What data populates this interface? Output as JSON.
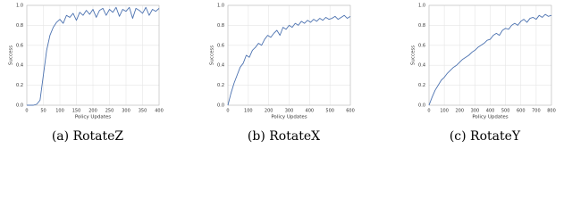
{
  "chart_data": [
    {
      "type": "line",
      "caption": "(a) RotateZ",
      "xlabel": "Policy Updates",
      "ylabel": "Success",
      "color": "#4c72b0",
      "grid": true,
      "x": [
        0,
        10,
        20,
        30,
        40,
        50,
        60,
        70,
        80,
        90,
        100,
        110,
        120,
        130,
        140,
        150,
        160,
        170,
        180,
        190,
        200,
        210,
        220,
        230,
        240,
        250,
        260,
        270,
        280,
        290,
        300,
        310,
        320,
        330,
        340,
        350,
        360,
        370,
        380,
        390,
        400
      ],
      "values": [
        0.0,
        0.0,
        0.0,
        0.01,
        0.05,
        0.3,
        0.55,
        0.7,
        0.78,
        0.83,
        0.86,
        0.82,
        0.9,
        0.88,
        0.92,
        0.85,
        0.93,
        0.9,
        0.95,
        0.91,
        0.96,
        0.88,
        0.95,
        0.97,
        0.9,
        0.96,
        0.93,
        0.98,
        0.89,
        0.96,
        0.94,
        0.98,
        0.87,
        0.97,
        0.95,
        0.92,
        0.98,
        0.9,
        0.96,
        0.94,
        0.97
      ],
      "xlim": [
        0,
        400
      ],
      "xticks": [
        0,
        50,
        100,
        150,
        200,
        250,
        300,
        350,
        400
      ],
      "ylim": [
        0,
        1
      ],
      "yticks": [
        {
          "value": 0,
          "label": "0.0"
        },
        0.2,
        0.4,
        0.6,
        0.8,
        {
          "value": 1,
          "label": "1.0"
        }
      ]
    },
    {
      "type": "line",
      "caption": "(b) RotateX",
      "xlabel": "Policy Updates",
      "ylabel": "Success",
      "color": "#4c72b0",
      "grid": true,
      "x": [
        0,
        15,
        30,
        45,
        60,
        75,
        90,
        105,
        120,
        135,
        150,
        165,
        180,
        195,
        210,
        225,
        240,
        255,
        270,
        285,
        300,
        315,
        330,
        345,
        360,
        375,
        390,
        405,
        420,
        435,
        450,
        465,
        480,
        495,
        510,
        525,
        540,
        555,
        570,
        585,
        600
      ],
      "values": [
        0.0,
        0.12,
        0.22,
        0.3,
        0.38,
        0.42,
        0.5,
        0.48,
        0.55,
        0.58,
        0.62,
        0.6,
        0.66,
        0.7,
        0.68,
        0.72,
        0.75,
        0.7,
        0.78,
        0.76,
        0.8,
        0.78,
        0.82,
        0.8,
        0.84,
        0.82,
        0.85,
        0.83,
        0.86,
        0.84,
        0.87,
        0.85,
        0.88,
        0.86,
        0.87,
        0.89,
        0.86,
        0.88,
        0.9,
        0.87,
        0.89
      ],
      "xlim": [
        0,
        600
      ],
      "xticks": [
        0,
        100,
        200,
        300,
        400,
        500,
        600
      ],
      "ylim": [
        0,
        1
      ],
      "yticks": [
        {
          "value": 0,
          "label": "0.0"
        },
        0.2,
        0.4,
        0.6,
        0.8,
        {
          "value": 1,
          "label": "1.0"
        }
      ]
    },
    {
      "type": "line",
      "caption": "(c) RotateY",
      "xlabel": "Policy Updates",
      "ylabel": "Success",
      "color": "#4c72b0",
      "grid": true,
      "x": [
        0,
        20,
        40,
        60,
        80,
        100,
        120,
        140,
        160,
        180,
        200,
        220,
        240,
        260,
        280,
        300,
        320,
        340,
        360,
        380,
        400,
        420,
        440,
        460,
        480,
        500,
        520,
        540,
        560,
        580,
        600,
        620,
        640,
        660,
        680,
        700,
        720,
        740,
        760,
        780,
        800
      ],
      "values": [
        0.0,
        0.08,
        0.15,
        0.2,
        0.25,
        0.28,
        0.32,
        0.35,
        0.38,
        0.4,
        0.43,
        0.46,
        0.48,
        0.5,
        0.53,
        0.55,
        0.58,
        0.6,
        0.62,
        0.65,
        0.66,
        0.7,
        0.72,
        0.7,
        0.75,
        0.77,
        0.76,
        0.8,
        0.82,
        0.8,
        0.84,
        0.86,
        0.83,
        0.87,
        0.88,
        0.86,
        0.9,
        0.88,
        0.91,
        0.89,
        0.9
      ],
      "xlim": [
        0,
        800
      ],
      "xticks": [
        0,
        100,
        200,
        300,
        400,
        500,
        600,
        700,
        800
      ],
      "ylim": [
        0,
        1
      ],
      "yticks": [
        {
          "value": 0,
          "label": "0.0"
        },
        0.2,
        0.4,
        0.6,
        0.8,
        {
          "value": 1,
          "label": "1.0"
        }
      ]
    }
  ]
}
